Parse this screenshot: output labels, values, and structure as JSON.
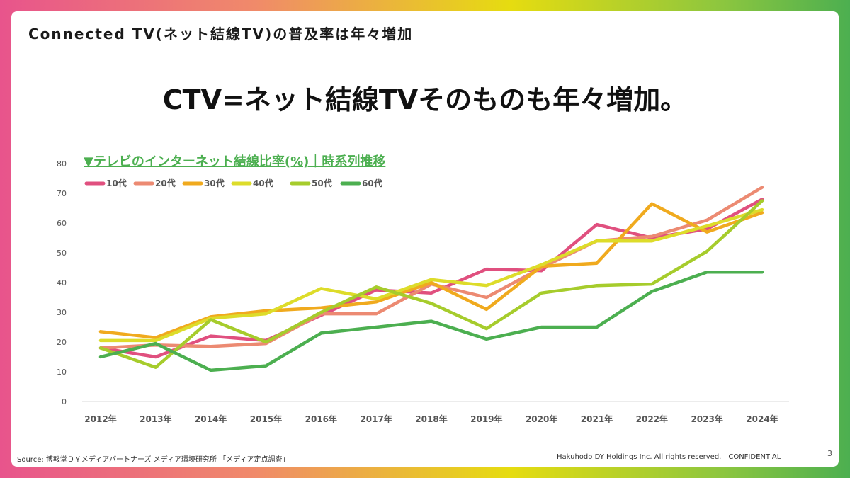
{
  "slide": {
    "header_title": "Connected TV(ネット結線TV)の普及率は年々増加",
    "headline": "CTV=ネット結線TVそのものも年々増加。",
    "chart_title": "▼テレビのインターネット結線比率(%)｜時系列推移",
    "source": "Source: 博報堂ＤＹメディアパートナーズ メディア環境研究所 「メディア定点調査」",
    "rights": "Hakuhodo DY Holdings Inc. All rights reserved.｜CONFIDENTIAL",
    "page_number": "3"
  },
  "chart_data": {
    "type": "line",
    "title": "▼テレビのインターネット結線比率(%)｜時系列推移",
    "xlabel": "",
    "ylabel": "",
    "ylim": [
      0,
      80
    ],
    "yticks": [
      0,
      10,
      20,
      30,
      40,
      50,
      60,
      70,
      80
    ],
    "grid": false,
    "legend": "top-left",
    "x": [
      "2012年",
      "2013年",
      "2014年",
      "2015年",
      "2016年",
      "2017年",
      "2018年",
      "2019年",
      "2020年",
      "2021年",
      "2022年",
      "2023年",
      "2024年"
    ],
    "series": [
      {
        "name": "10代",
        "color": "#e0507f",
        "values": [
          18,
          15,
          22,
          20.5,
          29,
          37.5,
          36.5,
          44.5,
          44,
          59.5,
          55,
          58,
          68
        ]
      },
      {
        "name": "20代",
        "color": "#ec8a72",
        "values": [
          18,
          19,
          18.5,
          19.5,
          29.5,
          29.5,
          39.5,
          35,
          45,
          54,
          55.5,
          61,
          72
        ]
      },
      {
        "name": "30代",
        "color": "#f0aa1e",
        "values": [
          23.5,
          21.5,
          28.5,
          30.5,
          31.5,
          33.5,
          40,
          31,
          45.5,
          46.5,
          66.5,
          57,
          63.5
        ]
      },
      {
        "name": "40代",
        "color": "#dddc2a",
        "values": [
          20.5,
          20.5,
          28,
          29.5,
          38,
          34.5,
          41,
          39,
          46,
          54,
          54,
          59,
          64.5
        ]
      },
      {
        "name": "50代",
        "color": "#a6cc2c",
        "values": [
          18,
          11.5,
          27.5,
          20,
          30,
          38.5,
          33,
          24.5,
          36.5,
          39,
          39.5,
          50.5,
          67.5
        ]
      },
      {
        "name": "60代",
        "color": "#4caf50",
        "values": [
          15,
          19.5,
          10.5,
          12,
          23,
          25,
          27,
          21,
          25,
          25,
          37,
          43.5,
          43.5
        ]
      }
    ]
  }
}
